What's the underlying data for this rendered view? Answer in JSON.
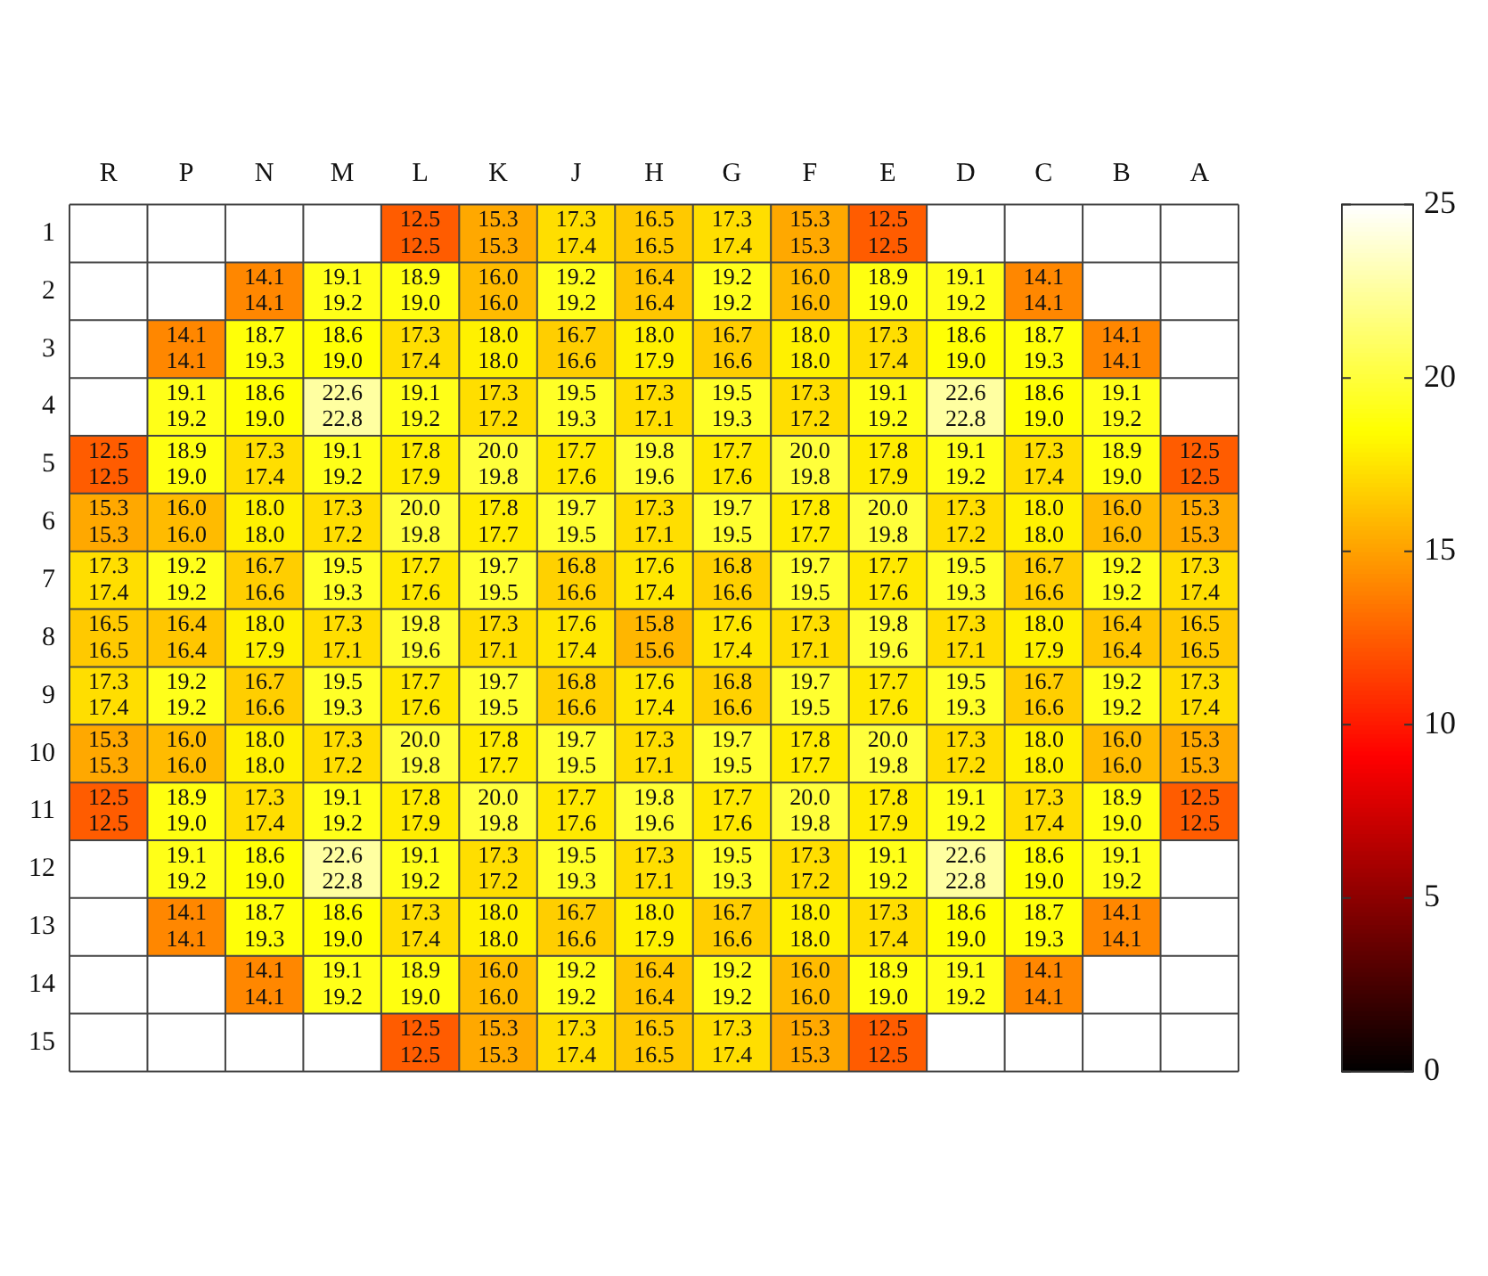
{
  "chart_data": {
    "type": "heatmap",
    "categories": [
      "R",
      "P",
      "N",
      "M",
      "L",
      "K",
      "J",
      "H",
      "G",
      "F",
      "E",
      "D",
      "C",
      "B",
      "A"
    ],
    "y_categories": [
      "1",
      "2",
      "3",
      "4",
      "5",
      "6",
      "7",
      "8",
      "9",
      "10",
      "11",
      "12",
      "13",
      "14",
      "15"
    ],
    "cells": [
      [
        null,
        null,
        null,
        null,
        12.5,
        15.3,
        17.3,
        16.5,
        17.3,
        15.3,
        12.5,
        null,
        null,
        null,
        null
      ],
      [
        null,
        null,
        14.1,
        19.1,
        18.9,
        16.0,
        19.2,
        16.4,
        19.2,
        16.0,
        18.9,
        19.1,
        14.1,
        null,
        null
      ],
      [
        null,
        14.1,
        18.7,
        18.6,
        17.3,
        18.0,
        16.7,
        18.0,
        16.7,
        18.0,
        17.3,
        18.6,
        18.7,
        14.1,
        null
      ],
      [
        null,
        19.1,
        18.6,
        22.6,
        19.1,
        17.3,
        19.5,
        17.3,
        19.5,
        17.3,
        19.1,
        22.6,
        18.6,
        19.1,
        null
      ],
      [
        12.5,
        18.9,
        17.3,
        19.1,
        17.8,
        20.0,
        17.7,
        19.8,
        17.7,
        20.0,
        17.8,
        19.1,
        17.3,
        18.9,
        12.5
      ],
      [
        15.3,
        16.0,
        18.0,
        17.3,
        20.0,
        17.8,
        19.7,
        17.3,
        19.7,
        17.8,
        20.0,
        17.3,
        18.0,
        16.0,
        15.3
      ],
      [
        17.3,
        19.2,
        16.7,
        19.5,
        17.7,
        19.7,
        16.8,
        17.6,
        16.8,
        19.7,
        17.7,
        19.5,
        16.7,
        19.2,
        17.3
      ],
      [
        16.5,
        16.4,
        18.0,
        17.3,
        19.8,
        17.3,
        17.6,
        15.8,
        17.6,
        17.3,
        19.8,
        17.3,
        18.0,
        16.4,
        16.5
      ],
      [
        17.3,
        19.2,
        16.7,
        19.5,
        17.7,
        19.7,
        16.8,
        17.6,
        16.8,
        19.7,
        17.7,
        19.5,
        16.7,
        19.2,
        17.3
      ],
      [
        15.3,
        16.0,
        18.0,
        17.3,
        20.0,
        17.8,
        19.7,
        17.3,
        19.7,
        17.8,
        20.0,
        17.3,
        18.0,
        16.0,
        15.3
      ],
      [
        12.5,
        18.9,
        17.3,
        19.1,
        17.8,
        20.0,
        17.7,
        19.8,
        17.7,
        20.0,
        17.8,
        19.1,
        17.3,
        18.9,
        12.5
      ],
      [
        null,
        19.1,
        18.6,
        22.6,
        19.1,
        17.3,
        19.5,
        17.3,
        19.5,
        17.3,
        19.1,
        22.6,
        18.6,
        19.1,
        null
      ],
      [
        null,
        14.1,
        18.7,
        18.6,
        17.3,
        18.0,
        16.7,
        18.0,
        16.7,
        18.0,
        17.3,
        18.6,
        18.7,
        14.1,
        null
      ],
      [
        null,
        null,
        14.1,
        19.1,
        18.9,
        16.0,
        19.2,
        16.4,
        19.2,
        16.0,
        18.9,
        19.1,
        14.1,
        null,
        null
      ],
      [
        null,
        null,
        null,
        null,
        12.5,
        15.3,
        17.3,
        16.5,
        17.3,
        15.3,
        12.5,
        null,
        null,
        null,
        null
      ]
    ],
    "cell_labels": [
      [
        null,
        null,
        null,
        null,
        "12.5\n12.5",
        "15.3\n15.3",
        "17.3\n17.4",
        "16.5\n16.5",
        "17.3\n17.4",
        "15.3\n15.3",
        "12.5\n12.5",
        null,
        null,
        null,
        null
      ],
      [
        null,
        null,
        "14.1\n14.1",
        "19.1\n19.2",
        "18.9\n19.0",
        "16.0\n16.0",
        "19.2\n19.2",
        "16.4\n16.4",
        "19.2\n19.2",
        "16.0\n16.0",
        "18.9\n19.0",
        "19.1\n19.2",
        "14.1\n14.1",
        null,
        null
      ],
      [
        null,
        "14.1\n14.1",
        "18.7\n19.3",
        "18.6\n19.0",
        "17.3\n17.4",
        "18.0\n18.0",
        "16.7\n16.6",
        "18.0\n17.9",
        "16.7\n16.6",
        "18.0\n18.0",
        "17.3\n17.4",
        "18.6\n19.0",
        "18.7\n19.3",
        "14.1\n14.1",
        null
      ],
      [
        null,
        "19.1\n19.2",
        "18.6\n19.0",
        "22.6\n22.8",
        "19.1\n19.2",
        "17.3\n17.2",
        "19.5\n19.3",
        "17.3\n17.1",
        "19.5\n19.3",
        "17.3\n17.2",
        "19.1\n19.2",
        "22.6\n22.8",
        "18.6\n19.0",
        "19.1\n19.2",
        null
      ],
      [
        "12.5\n12.5",
        "18.9\n19.0",
        "17.3\n17.4",
        "19.1\n19.2",
        "17.8\n17.9",
        "20.0\n19.8",
        "17.7\n17.6",
        "19.8\n19.6",
        "17.7\n17.6",
        "20.0\n19.8",
        "17.8\n17.9",
        "19.1\n19.2",
        "17.3\n17.4",
        "18.9\n19.0",
        "12.5\n12.5"
      ],
      [
        "15.3\n15.3",
        "16.0\n16.0",
        "18.0\n18.0",
        "17.3\n17.2",
        "20.0\n19.8",
        "17.8\n17.7",
        "19.7\n19.5",
        "17.3\n17.1",
        "19.7\n19.5",
        "17.8\n17.7",
        "20.0\n19.8",
        "17.3\n17.2",
        "18.0\n18.0",
        "16.0\n16.0",
        "15.3\n15.3"
      ],
      [
        "17.3\n17.4",
        "19.2\n19.2",
        "16.7\n16.6",
        "19.5\n19.3",
        "17.7\n17.6",
        "19.7\n19.5",
        "16.8\n16.6",
        "17.6\n17.4",
        "16.8\n16.6",
        "19.7\n19.5",
        "17.7\n17.6",
        "19.5\n19.3",
        "16.7\n16.6",
        "19.2\n19.2",
        "17.3\n17.4"
      ],
      [
        "16.5\n16.5",
        "16.4\n16.4",
        "18.0\n17.9",
        "17.3\n17.1",
        "19.8\n19.6",
        "17.3\n17.1",
        "17.6\n17.4",
        "15.8\n15.6",
        "17.6\n17.4",
        "17.3\n17.1",
        "19.8\n19.6",
        "17.3\n17.1",
        "18.0\n17.9",
        "16.4\n16.4",
        "16.5\n16.5"
      ],
      [
        "17.3\n17.4",
        "19.2\n19.2",
        "16.7\n16.6",
        "19.5\n19.3",
        "17.7\n17.6",
        "19.7\n19.5",
        "16.8\n16.6",
        "17.6\n17.4",
        "16.8\n16.6",
        "19.7\n19.5",
        "17.7\n17.6",
        "19.5\n19.3",
        "16.7\n16.6",
        "19.2\n19.2",
        "17.3\n17.4"
      ],
      [
        "15.3\n15.3",
        "16.0\n16.0",
        "18.0\n18.0",
        "17.3\n17.2",
        "20.0\n19.8",
        "17.8\n17.7",
        "19.7\n19.5",
        "17.3\n17.1",
        "19.7\n19.5",
        "17.8\n17.7",
        "20.0\n19.8",
        "17.3\n17.2",
        "18.0\n18.0",
        "16.0\n16.0",
        "15.3\n15.3"
      ],
      [
        "12.5\n12.5",
        "18.9\n19.0",
        "17.3\n17.4",
        "19.1\n19.2",
        "17.8\n17.9",
        "20.0\n19.8",
        "17.7\n17.6",
        "19.8\n19.6",
        "17.7\n17.6",
        "20.0\n19.8",
        "17.8\n17.9",
        "19.1\n19.2",
        "17.3\n17.4",
        "18.9\n19.0",
        "12.5\n12.5"
      ],
      [
        null,
        "19.1\n19.2",
        "18.6\n19.0",
        "22.6\n22.8",
        "19.1\n19.2",
        "17.3\n17.2",
        "19.5\n19.3",
        "17.3\n17.1",
        "19.5\n19.3",
        "17.3\n17.2",
        "19.1\n19.2",
        "22.6\n22.8",
        "18.6\n19.0",
        "19.1\n19.2",
        null
      ],
      [
        null,
        "14.1\n14.1",
        "18.7\n19.3",
        "18.6\n19.0",
        "17.3\n17.4",
        "18.0\n18.0",
        "16.7\n16.6",
        "18.0\n17.9",
        "16.7\n16.6",
        "18.0\n18.0",
        "17.3\n17.4",
        "18.6\n19.0",
        "18.7\n19.3",
        "14.1\n14.1",
        null
      ],
      [
        null,
        null,
        "14.1\n14.1",
        "19.1\n19.2",
        "18.9\n19.0",
        "16.0\n16.0",
        "19.2\n19.2",
        "16.4\n16.4",
        "19.2\n19.2",
        "16.0\n16.0",
        "18.9\n19.0",
        "19.1\n19.2",
        "14.1\n14.1",
        null,
        null
      ],
      [
        null,
        null,
        null,
        null,
        "12.5\n12.5",
        "15.3\n15.3",
        "17.3\n17.4",
        "16.5\n16.5",
        "17.3\n17.4",
        "15.3\n15.3",
        "12.5\n12.5",
        null,
        null,
        null,
        null
      ]
    ],
    "clim": [
      0,
      25
    ],
    "cticks": [
      0,
      5,
      10,
      15,
      20,
      25
    ]
  }
}
